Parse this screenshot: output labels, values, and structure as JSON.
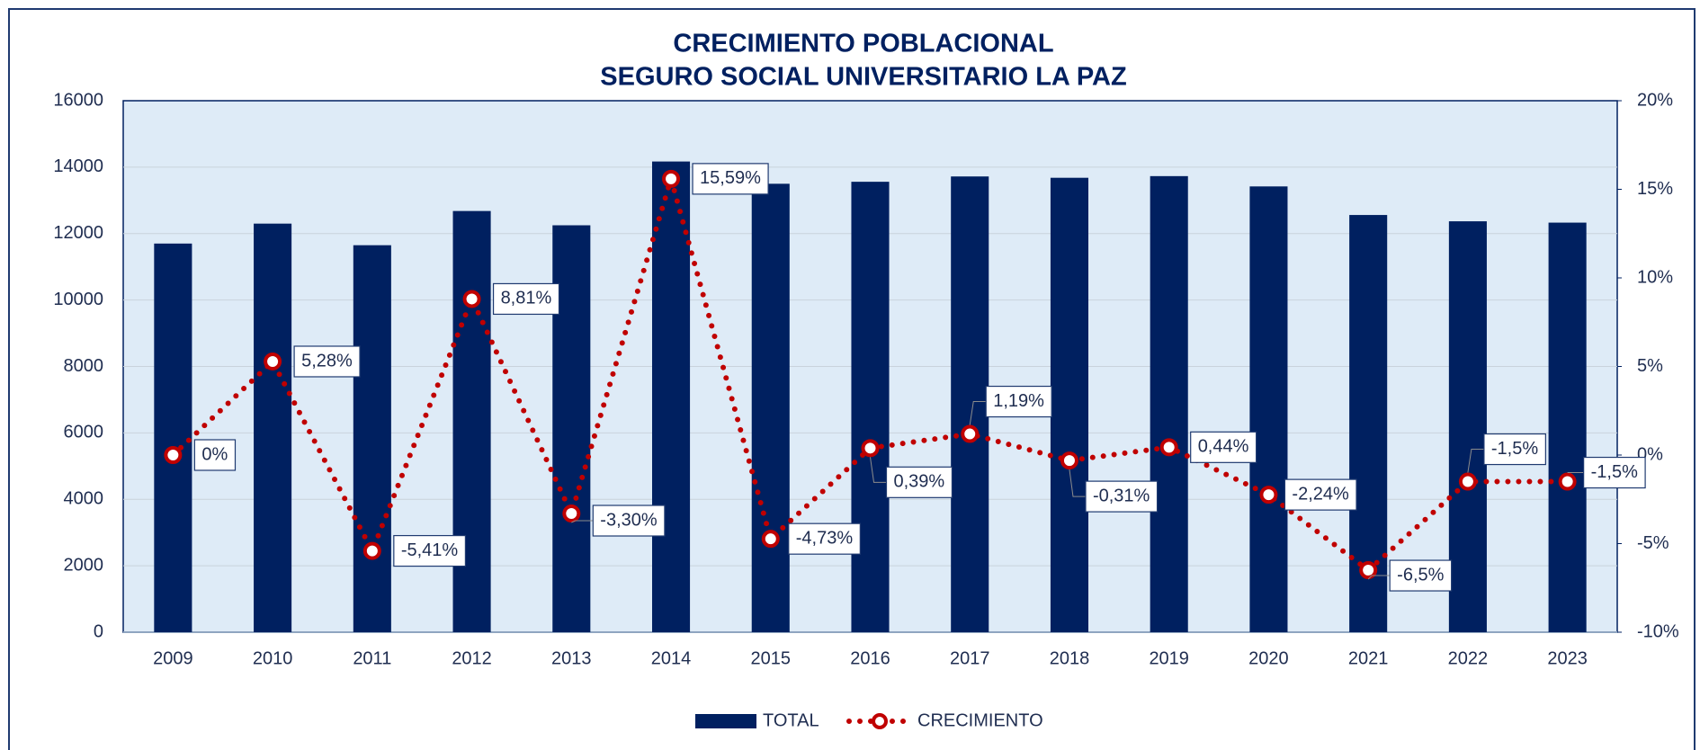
{
  "chart_data": {
    "type": "bar",
    "title": "CRECIMIENTO POBLACIONAL",
    "subtitle": "SEGURO SOCIAL UNIVERSITARIO LA PAZ",
    "categories": [
      "2009",
      "2010",
      "2011",
      "2012",
      "2013",
      "2014",
      "2015",
      "2016",
      "2017",
      "2018",
      "2019",
      "2020",
      "2021",
      "2022",
      "2023"
    ],
    "series": [
      {
        "name": "TOTAL",
        "type": "bar",
        "color": "#002060",
        "axis": "y",
        "values": [
          11700,
          12300,
          11650,
          12680,
          12250,
          14170,
          13500,
          13560,
          13720,
          13680,
          13730,
          13420,
          12560,
          12370,
          12330
        ]
      },
      {
        "name": "CRECIMIENTO",
        "type": "line",
        "color": "#c00000",
        "axis": "y2",
        "values": [
          0,
          5.28,
          -5.41,
          8.81,
          -3.3,
          15.59,
          -4.73,
          0.39,
          1.19,
          -0.31,
          0.44,
          -2.24,
          -6.5,
          -1.5,
          -1.5
        ],
        "value_labels": [
          "0%",
          "5,28%",
          "-5,41%",
          "8,81%",
          "-3,30%",
          "15,59%",
          "-4,73%",
          "0,39%",
          "1,19%",
          "-0,31%",
          "0,44%",
          "-2,24%",
          "-6,5%",
          "-1,5%",
          "-1,5%"
        ]
      }
    ],
    "ylim": [
      0,
      16000
    ],
    "yticks": [
      0,
      2000,
      4000,
      6000,
      8000,
      10000,
      12000,
      14000,
      16000
    ],
    "y2lim": [
      -10,
      20
    ],
    "y2ticks": [
      {
        "value": -10,
        "label": "-10%"
      },
      {
        "value": -5,
        "label": "-5%"
      },
      {
        "value": 0,
        "label": "0%"
      },
      {
        "value": 5,
        "label": "5%"
      },
      {
        "value": 10,
        "label": "10%"
      },
      {
        "value": 15,
        "label": "15%"
      },
      {
        "value": 20,
        "label": "20%"
      }
    ],
    "grid": true,
    "legend": "bottom"
  }
}
